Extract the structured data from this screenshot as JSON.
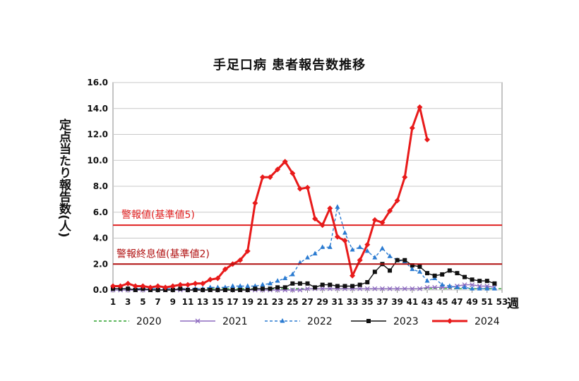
{
  "chart_data": {
    "type": "line",
    "title": "手足口病 患者報告数推移",
    "ylabel": "定点当たり報告数(人)",
    "xunit": "週",
    "ylim": [
      0,
      16
    ],
    "yticks": [
      "0.0",
      "2.0",
      "4.0",
      "6.0",
      "8.0",
      "10.0",
      "12.0",
      "14.0",
      "16.0"
    ],
    "xlim": [
      1,
      53
    ],
    "xticks": [
      1,
      3,
      5,
      7,
      9,
      11,
      13,
      15,
      17,
      19,
      21,
      23,
      25,
      27,
      29,
      31,
      33,
      35,
      37,
      39,
      41,
      43,
      45,
      47,
      49,
      51,
      53
    ],
    "grid": true,
    "legend_position": "bottom",
    "reference_lines": [
      {
        "label": "警報値(基準値5)",
        "value": 5,
        "color": "#e02020"
      },
      {
        "label": "警報終息値(基準値2)",
        "value": 2,
        "color": "#b01010"
      }
    ],
    "series": [
      {
        "name": "2020",
        "color": "#2ca02c",
        "style": "dashed",
        "marker": "none",
        "x": [
          1,
          2,
          3,
          4,
          5,
          6,
          7,
          8,
          9,
          10,
          11,
          12,
          13,
          14,
          15,
          16,
          17,
          18,
          19,
          20,
          21,
          22,
          23,
          24,
          25,
          26,
          27,
          28,
          29,
          30,
          31,
          32,
          33,
          34,
          35,
          36,
          37,
          38,
          39,
          40,
          41,
          42,
          43,
          44,
          45,
          46,
          47,
          48,
          49,
          50,
          51,
          52,
          53
        ],
        "y": [
          0.1,
          0.1,
          0.1,
          0.1,
          0.1,
          0.1,
          0.1,
          0.1,
          0.1,
          0.1,
          0.1,
          0.1,
          0.1,
          0.1,
          0.1,
          0.1,
          0.1,
          0.1,
          0.1,
          0.1,
          0.1,
          0.1,
          0.1,
          0.1,
          0.1,
          0.1,
          0.1,
          0.1,
          0.1,
          0.1,
          0.1,
          0.1,
          0.1,
          0.1,
          0.1,
          0.1,
          0.1,
          0.1,
          0.1,
          0.1,
          0.1,
          0.1,
          0.1,
          0.1,
          0.1,
          0.1,
          0.1,
          0.1,
          0.1,
          0.1,
          0.1,
          0.1,
          0.1
        ]
      },
      {
        "name": "2021",
        "color": "#8e6bbf",
        "style": "solid",
        "marker": "x",
        "x": [
          1,
          2,
          3,
          4,
          5,
          6,
          7,
          8,
          9,
          10,
          11,
          12,
          13,
          14,
          15,
          16,
          17,
          18,
          19,
          20,
          21,
          22,
          23,
          24,
          25,
          26,
          27,
          28,
          29,
          30,
          31,
          32,
          33,
          34,
          35,
          36,
          37,
          38,
          39,
          40,
          41,
          42,
          43,
          44,
          45,
          46,
          47,
          48,
          49,
          50,
          51,
          52
        ],
        "y": [
          0,
          0,
          0,
          0,
          0,
          0,
          0,
          0,
          0,
          0,
          0,
          0,
          0,
          0,
          0,
          0,
          0,
          0,
          0,
          0,
          0,
          0,
          0,
          0,
          0,
          0,
          0.1,
          0.1,
          0.1,
          0.1,
          0.1,
          0.1,
          0.1,
          0.1,
          0.1,
          0.1,
          0.1,
          0.1,
          0.1,
          0.1,
          0.1,
          0.1,
          0.2,
          0.2,
          0.2,
          0.2,
          0.3,
          0.4,
          0.4,
          0.3,
          0.3,
          0.2
        ]
      },
      {
        "name": "2022",
        "color": "#2b7bd1",
        "style": "dashed",
        "marker": "triangle",
        "x": [
          1,
          2,
          3,
          4,
          5,
          6,
          7,
          8,
          9,
          10,
          11,
          12,
          13,
          14,
          15,
          16,
          17,
          18,
          19,
          20,
          21,
          22,
          23,
          24,
          25,
          26,
          27,
          28,
          29,
          30,
          31,
          32,
          33,
          34,
          35,
          36,
          37,
          38,
          39,
          40,
          41,
          42,
          43,
          44,
          45,
          46,
          47,
          48,
          49,
          50,
          51,
          52
        ],
        "y": [
          0.1,
          0.1,
          0.1,
          0.1,
          0.1,
          0.1,
          0.1,
          0.1,
          0.1,
          0.1,
          0.1,
          0.1,
          0.1,
          0.2,
          0.2,
          0.2,
          0.3,
          0.3,
          0.3,
          0.3,
          0.4,
          0.5,
          0.7,
          0.9,
          1.2,
          2.1,
          2.5,
          2.8,
          3.3,
          3.3,
          6.4,
          4.4,
          3.1,
          3.3,
          3.0,
          2.5,
          3.2,
          2.6,
          2.3,
          2.2,
          1.6,
          1.4,
          0.7,
          0.9,
          0.4,
          0.3,
          0.2,
          0.2,
          0.1,
          0.1,
          0.1,
          0.1
        ]
      },
      {
        "name": "2023",
        "color": "#111111",
        "style": "solid",
        "marker": "square",
        "x": [
          1,
          2,
          3,
          4,
          5,
          6,
          7,
          8,
          9,
          10,
          11,
          12,
          13,
          14,
          15,
          16,
          17,
          18,
          19,
          20,
          21,
          22,
          23,
          24,
          25,
          26,
          27,
          28,
          29,
          30,
          31,
          32,
          33,
          34,
          35,
          36,
          37,
          38,
          39,
          40,
          41,
          42,
          43,
          44,
          45,
          46,
          47,
          48,
          49,
          50,
          51,
          52
        ],
        "y": [
          0.1,
          0.1,
          0.1,
          0.0,
          0.1,
          0.0,
          0.0,
          0.0,
          0.0,
          0.1,
          0.0,
          0.0,
          0.0,
          0.0,
          0.0,
          0.0,
          0.0,
          0.0,
          0.0,
          0.1,
          0.1,
          0.1,
          0.2,
          0.2,
          0.5,
          0.5,
          0.5,
          0.2,
          0.4,
          0.4,
          0.3,
          0.3,
          0.3,
          0.4,
          0.6,
          1.4,
          2.0,
          1.5,
          2.3,
          2.3,
          1.9,
          1.8,
          1.3,
          1.1,
          1.2,
          1.5,
          1.3,
          1.0,
          0.8,
          0.7,
          0.7,
          0.5
        ]
      },
      {
        "name": "2024",
        "color": "#e81a1a",
        "style": "solid",
        "marker": "diamond",
        "x": [
          1,
          2,
          3,
          4,
          5,
          6,
          7,
          8,
          9,
          10,
          11,
          12,
          13,
          14,
          15,
          16,
          17,
          18,
          19,
          20,
          21,
          22,
          23,
          24,
          25,
          26,
          27,
          28,
          29,
          30,
          31,
          32,
          33,
          34,
          35,
          36,
          37,
          38,
          39,
          40,
          41,
          42,
          43
        ],
        "y": [
          0.3,
          0.3,
          0.5,
          0.3,
          0.3,
          0.2,
          0.3,
          0.2,
          0.3,
          0.4,
          0.4,
          0.5,
          0.5,
          0.8,
          0.9,
          1.6,
          2.0,
          2.3,
          3.0,
          6.7,
          8.7,
          8.7,
          9.3,
          9.9,
          9.0,
          7.8,
          7.9,
          5.5,
          5.0,
          6.3,
          4.1,
          3.8,
          1.1,
          2.3,
          3.5,
          5.4,
          5.2,
          6.1,
          6.9,
          8.7,
          12.5,
          14.1,
          11.6
        ]
      }
    ]
  }
}
